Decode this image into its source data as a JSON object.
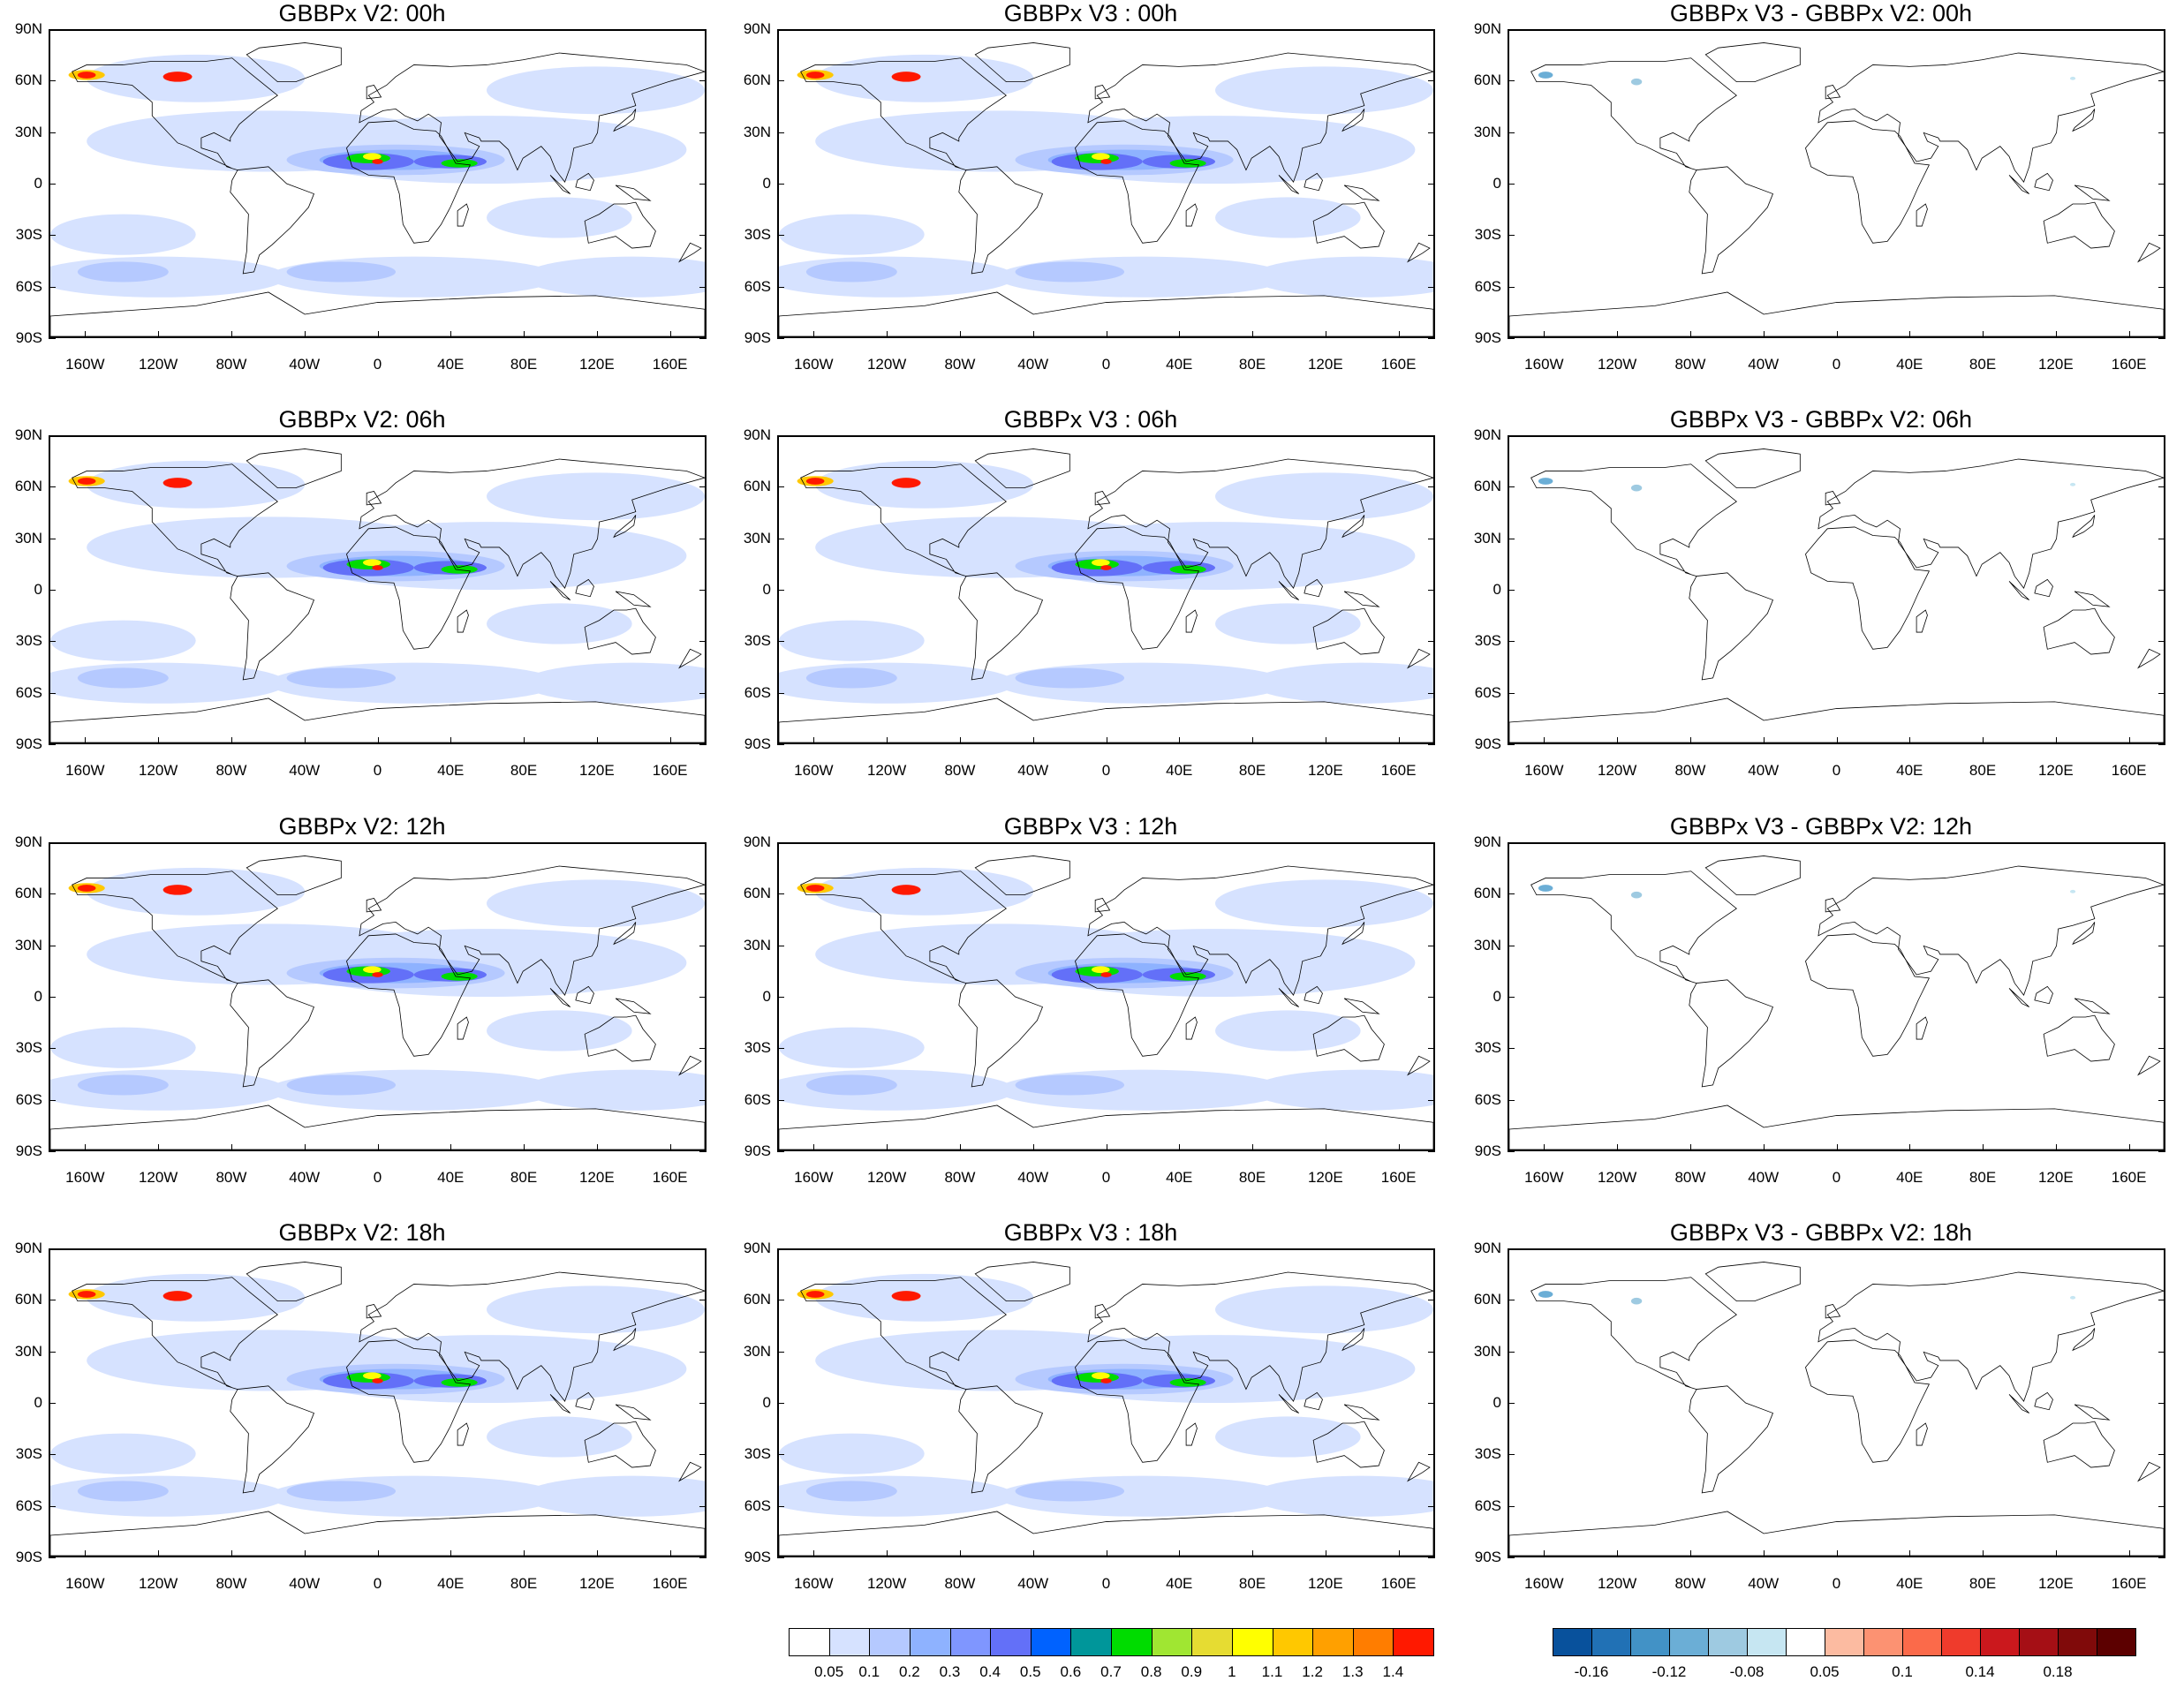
{
  "panels": [
    {
      "title": "GBBPx V2: 00h",
      "kind": "abs"
    },
    {
      "title": "GBBPx V3 : 00h",
      "kind": "abs"
    },
    {
      "title": "GBBPx V3 - GBBPx V2: 00h",
      "kind": "diff"
    },
    {
      "title": "GBBPx V2: 06h",
      "kind": "abs"
    },
    {
      "title": "GBBPx V3 : 06h",
      "kind": "abs"
    },
    {
      "title": "GBBPx V3 - GBBPx V2: 06h",
      "kind": "diff"
    },
    {
      "title": "GBBPx V2: 12h",
      "kind": "abs"
    },
    {
      "title": "GBBPx V3 : 12h",
      "kind": "abs"
    },
    {
      "title": "GBBPx V3 - GBBPx V2: 12h",
      "kind": "diff"
    },
    {
      "title": "GBBPx V2: 18h",
      "kind": "abs"
    },
    {
      "title": "GBBPx V3 : 18h",
      "kind": "abs"
    },
    {
      "title": "GBBPx V3 - GBBPx V2: 18h",
      "kind": "diff"
    }
  ],
  "lat_labels": [
    "90N",
    "60N",
    "30N",
    "0",
    "30S",
    "60S",
    "90S"
  ],
  "lon_labels": [
    "160W",
    "120W",
    "80W",
    "40W",
    "0",
    "40E",
    "80E",
    "120E",
    "160E"
  ],
  "colorbar_abs": {
    "colors": [
      "#ffffff",
      "#d6e2ff",
      "#b5c9ff",
      "#8eb2ff",
      "#7f96ff",
      "#6370f8",
      "#0062ff",
      "#00969a",
      "#00dc00",
      "#a0e632",
      "#e6dc32",
      "#ffff00",
      "#ffc800",
      "#ffa000",
      "#ff7d00",
      "#ff1900"
    ],
    "labels": [
      "0.05",
      "0.1",
      "0.2",
      "0.3",
      "0.4",
      "0.5",
      "0.6",
      "0.7",
      "0.8",
      "0.9",
      "1",
      "1.1",
      "1.2",
      "1.3",
      "1.4"
    ]
  },
  "colorbar_diff": {
    "colors": [
      "#08519c",
      "#2171b5",
      "#4292c6",
      "#6baed6",
      "#9ecae1",
      "#c6e6f2",
      "#ffffff",
      "#fcbba1",
      "#fc9272",
      "#fb6a4a",
      "#ef3b2c",
      "#cb181d",
      "#a50f15",
      "#800a0a",
      "#5c0000"
    ],
    "labels": [
      "-0.16",
      "",
      "-0.12",
      "",
      "-0.08",
      "",
      "0.05",
      "",
      "0.1",
      "",
      "0.14",
      "",
      "0.18",
      ""
    ]
  }
}
